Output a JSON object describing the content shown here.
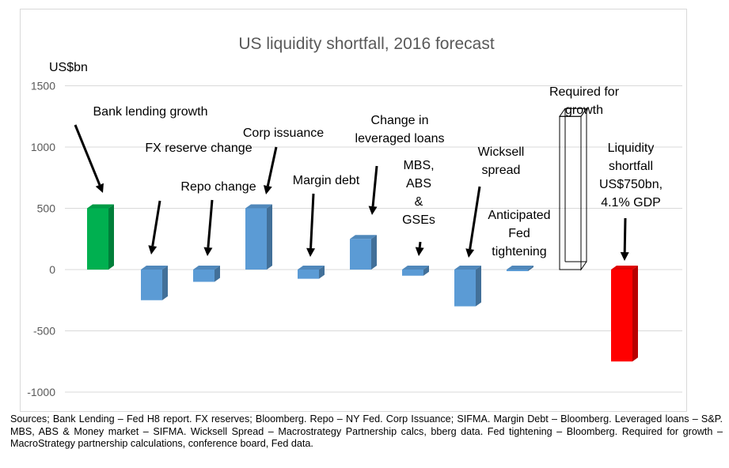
{
  "chart_data": {
    "type": "bar",
    "title": "US liquidity shortfall, 2016 forecast",
    "ylabel": "US$bn",
    "ylim": [
      -1000,
      1500
    ],
    "yticks": [
      1500,
      1000,
      500,
      0,
      -500,
      -1000
    ],
    "grid": true,
    "categories": [
      "Bank lending growth",
      "FX reserve change",
      "Repo change",
      "Corp issuance",
      "Margin debt",
      "Change in leveraged loans",
      "MBS, ABS & GSEs",
      "Wicksell spread",
      "Anticipated Fed tightening",
      "Required for growth",
      "Liquidity shortfall US$750bn, 4.1% GDP"
    ],
    "values": [
      500,
      -250,
      -100,
      500,
      -75,
      250,
      -50,
      -300,
      0,
      1250,
      -750
    ],
    "bar_colors": [
      "#00b050",
      "#5b9bd5",
      "#5b9bd5",
      "#5b9bd5",
      "#5b9bd5",
      "#5b9bd5",
      "#5b9bd5",
      "#5b9bd5",
      "#5b9bd5",
      "outline",
      "#ff0000"
    ],
    "annotations": [
      [
        "Bank lending growth"
      ],
      [
        "FX reserve change"
      ],
      [
        "Repo change"
      ],
      [
        "Corp issuance"
      ],
      [
        "Margin debt"
      ],
      [
        "Change in",
        "leveraged loans"
      ],
      [
        "MBS,",
        "ABS",
        "&",
        "GSEs"
      ],
      [
        "Wicksell",
        "spread"
      ],
      [
        "Anticipated",
        "Fed",
        "tightening"
      ],
      [
        "Required for",
        "growth"
      ],
      [
        "Liquidity",
        "shortfall",
        "US$750bn,",
        "4.1% GDP"
      ]
    ]
  },
  "colors": {
    "green": "#00b050",
    "blue": "#5b9bd5",
    "red": "#ff0000",
    "grid": "#d9d9d9",
    "text": "#595959"
  },
  "sources": "Sources; Bank Lending – Fed H8 report. FX reserves; Bloomberg. Repo – NY Fed. Corp Issuance; SIFMA. Margin Debt – Bloomberg. Leveraged loans – S&P. MBS, ABS & Money market – SIFMA. Wicksell Spread – Macrostrategy Partnership calcs, bberg data. Fed tightening – Bloomberg. Required for growth – MacroStrategy partnership calculations, conference board, Fed data."
}
